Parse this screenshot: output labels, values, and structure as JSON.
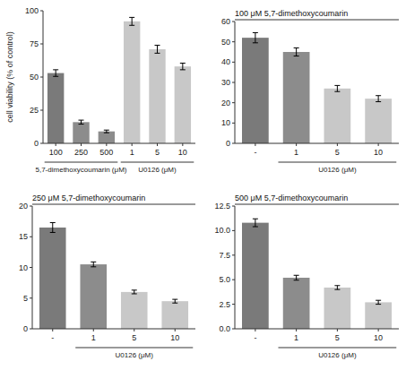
{
  "chart_data": [
    {
      "type": "bar",
      "ylabel": "cell viability (% of control)",
      "categories": [
        "100",
        "250",
        "500",
        "1",
        "5",
        "10"
      ],
      "values": [
        53,
        16,
        9,
        92,
        71,
        58
      ],
      "errors": [
        2.5,
        1.5,
        1.0,
        3.0,
        3.0,
        2.5
      ],
      "colors": [
        "#7a7a7a",
        "#8c8c8c",
        "#8c8c8c",
        "#c8c8c8",
        "#c8c8c8",
        "#c8c8c8"
      ],
      "groups": [
        {
          "label": "5,7-dimethoxycoumarin (μM)",
          "first": 0,
          "last": 2
        },
        {
          "label": "U0126 (μM)",
          "first": 3,
          "last": 5
        }
      ],
      "ylim": [
        0,
        100
      ],
      "yticks": [
        0,
        25,
        50,
        75,
        100
      ]
    },
    {
      "type": "bar",
      "title": "100 μM 5,7-dimethoxycoumarin",
      "categories": [
        "-",
        "1",
        "5",
        "10"
      ],
      "values": [
        52,
        45,
        27,
        22
      ],
      "errors": [
        2.5,
        2.0,
        1.5,
        1.5
      ],
      "colors": [
        "#7a7a7a",
        "#8c8c8c",
        "#c8c8c8",
        "#c8c8c8"
      ],
      "groups": [
        {
          "label": "U0126 (μM)",
          "first": 1,
          "last": 3
        }
      ],
      "ylim": [
        0,
        60
      ],
      "yticks": [
        0,
        10,
        20,
        30,
        40,
        50,
        60
      ]
    },
    {
      "type": "bar",
      "title": "250 μM 5,7-dimethoxycoumarin",
      "categories": [
        "-",
        "1",
        "5",
        "10"
      ],
      "values": [
        16.5,
        10.5,
        6.0,
        4.5
      ],
      "errors": [
        0.8,
        0.4,
        0.3,
        0.3
      ],
      "colors": [
        "#7a7a7a",
        "#8c8c8c",
        "#c8c8c8",
        "#c8c8c8"
      ],
      "groups": [
        {
          "label": "U0126 (μM)",
          "first": 1,
          "last": 3
        }
      ],
      "ylim": [
        0,
        20
      ],
      "yticks": [
        0,
        5,
        10,
        15,
        20
      ]
    },
    {
      "type": "bar",
      "title": "500 μM 5,7-dimethoxycoumarin",
      "categories": [
        "-",
        "1",
        "5",
        "10"
      ],
      "values": [
        10.8,
        5.2,
        4.2,
        2.7
      ],
      "errors": [
        0.4,
        0.25,
        0.2,
        0.2
      ],
      "colors": [
        "#7a7a7a",
        "#8c8c8c",
        "#c8c8c8",
        "#c8c8c8"
      ],
      "groups": [
        {
          "label": "U0126 (μM)",
          "first": 1,
          "last": 3
        }
      ],
      "ylim": [
        0,
        12.5
      ],
      "yticks": [
        {
          "value": 0,
          "label": "0.0"
        },
        2.5,
        {
          "value": 5,
          "label": "5.0"
        },
        7.5,
        {
          "value": 10,
          "label": "10.0"
        },
        12.5
      ]
    }
  ]
}
